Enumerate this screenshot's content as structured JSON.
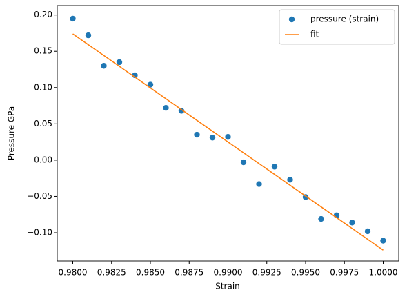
{
  "chart_data": {
    "type": "scatter",
    "xlabel": "Strain",
    "ylabel": "Pressure GPa",
    "xlim": [
      0.979,
      1.001
    ],
    "ylim": [
      -0.139,
      0.213
    ],
    "xticks": [
      {
        "value": 0.98,
        "label": "0.9800"
      },
      {
        "value": 0.9825,
        "label": "0.9825"
      },
      {
        "value": 0.985,
        "label": "0.9850"
      },
      {
        "value": 0.9875,
        "label": "0.9875"
      },
      {
        "value": 0.99,
        "label": "0.9900"
      },
      {
        "value": 0.9925,
        "label": "0.9925"
      },
      {
        "value": 0.995,
        "label": "0.9950"
      },
      {
        "value": 0.9975,
        "label": "0.9975"
      },
      {
        "value": 1.0,
        "label": "1.0000"
      }
    ],
    "yticks": [
      {
        "value": -0.1,
        "label": "−0.10"
      },
      {
        "value": -0.05,
        "label": "−0.05"
      },
      {
        "value": 0.0,
        "label": "0.00"
      },
      {
        "value": 0.05,
        "label": "0.05"
      },
      {
        "value": 0.1,
        "label": "0.10"
      },
      {
        "value": 0.15,
        "label": "0.15"
      },
      {
        "value": 0.2,
        "label": "0.20"
      }
    ],
    "legend": "upper right",
    "series": [
      {
        "name": "pressure (strain)",
        "type": "scatter",
        "color": "#1f77b4",
        "x": [
          0.98,
          0.981,
          0.982,
          0.983,
          0.984,
          0.985,
          0.986,
          0.987,
          0.988,
          0.989,
          0.99,
          0.991,
          0.992,
          0.993,
          0.994,
          0.995,
          0.996,
          0.997,
          0.998,
          0.999,
          1.0
        ],
        "values": [
          0.195,
          0.172,
          0.13,
          0.135,
          0.117,
          0.104,
          0.072,
          0.068,
          0.035,
          0.031,
          0.032,
          -0.003,
          -0.033,
          -0.009,
          -0.027,
          -0.051,
          -0.081,
          -0.076,
          -0.086,
          -0.098,
          -0.111
        ]
      },
      {
        "name": "fit",
        "type": "line",
        "color": "#ff7f0e",
        "x": [
          0.98,
          1.0
        ],
        "values": [
          0.174,
          -0.124
        ]
      }
    ]
  }
}
